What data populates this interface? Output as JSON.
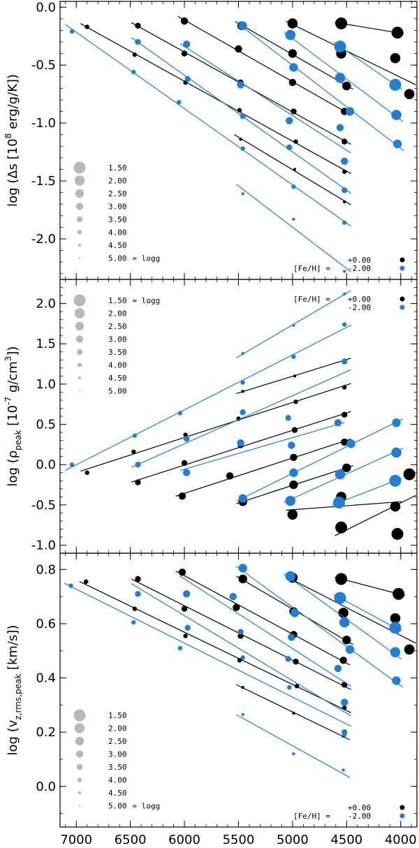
{
  "colors": {
    "fe_0": "#000000",
    "fe_m2": "#1f7fd6",
    "legend_gray": "#b8b8b8",
    "axis": "#000000"
  },
  "chart_data": [
    {
      "type": "scatter",
      "panel": "top",
      "ylabel_main": "log (Δs [10",
      "ylabel_sup": "8",
      "ylabel_tail": " erg/g/K])",
      "ylim": [
        -2.35,
        0.05
      ],
      "xlim": [
        7150,
        3850
      ],
      "yticks": [
        0.0,
        -0.5,
        -1.0,
        -1.5,
        -2.0
      ],
      "ytick_labels": [
        "0.0",
        "-0.5",
        "-1.0",
        "-1.5",
        "-2.0"
      ],
      "size_legend": {
        "position": "bottom-left",
        "values": [
          "1.50",
          "2.00",
          "2.50",
          "3.00",
          "3.50",
          "4.00",
          "4.50",
          "5.00"
        ],
        "suffix": "= logg"
      },
      "metal_legend": {
        "position": "bottom-right",
        "title": "[Fe/H] =",
        "entries": [
          "+0.00",
          "-2.00"
        ]
      },
      "series": [
        {
          "name": "[Fe/H]=+0.00",
          "color_key": "fe_0",
          "logg_points": [
            {
              "logg": 1.5,
              "x": [
                4550,
                4030
              ],
              "y": [
                -0.14,
                -0.22
              ]
            },
            {
              "logg": 2.0,
              "x": [
                5000,
                4550,
                4050,
                3920
              ],
              "y": [
                -0.14,
                -0.4,
                -0.44,
                -0.75
              ]
            },
            {
              "logg": 2.5,
              "x": [
                5470,
                5000,
                4500
              ],
              "y": [
                -0.16,
                -0.4,
                -0.68
              ]
            },
            {
              "logg": 3.0,
              "x": [
                6000,
                5500,
                5000,
                4520
              ],
              "y": [
                -0.12,
                -0.36,
                -0.65,
                -0.9
              ]
            },
            {
              "logg": 3.5,
              "x": [
                6430,
                6000,
                5480,
                4990,
                4520
              ],
              "y": [
                -0.16,
                -0.4,
                -0.65,
                -0.9,
                -1.16
              ]
            },
            {
              "logg": 4.0,
              "x": [
                6900,
                6460,
                5990,
                5490,
                4970,
                4520
              ],
              "y": [
                -0.17,
                -0.41,
                -0.65,
                -0.89,
                -1.16,
                -1.42
              ]
            },
            {
              "logg": 4.5,
              "x": [
                5480,
                4980,
                4520
              ],
              "y": [
                -1.14,
                -1.4,
                -1.68
              ]
            }
          ]
        },
        {
          "name": "[Fe/H]=-2.00",
          "color_key": "fe_m2",
          "logg_points": [
            {
              "logg": 1.5,
              "x": [
                4560,
                4050
              ],
              "y": [
                -0.34,
                -0.67
              ]
            },
            {
              "logg": 2.0,
              "x": [
                5020,
                4560,
                4040
              ],
              "y": [
                -0.24,
                -0.61,
                -0.93
              ]
            },
            {
              "logg": 2.5,
              "x": [
                5460,
                4990,
                4470,
                4030
              ],
              "y": [
                -0.16,
                -0.52,
                -0.9,
                -1.18
              ]
            },
            {
              "logg": 3.0,
              "x": [
                5980,
                5480,
                5030,
                4560,
                4520
              ],
              "y": [
                -0.32,
                -0.67,
                -0.98,
                -1.04,
                -1.33
              ]
            },
            {
              "logg": 3.5,
              "x": [
                6430,
                5970,
                5460,
                5030,
                4520
              ],
              "y": [
                -0.3,
                -0.62,
                -0.94,
                -1.21,
                -1.58
              ]
            },
            {
              "logg": 4.0,
              "x": [
                7040,
                6470,
                6050,
                5460,
                4990,
                4520
              ],
              "y": [
                -0.21,
                -0.56,
                -0.82,
                -1.22,
                -1.55,
                -1.86
              ]
            },
            {
              "logg": 4.5,
              "x": [
                5460,
                4990,
                4520
              ],
              "y": [
                -1.61,
                -1.83,
                -2.28
              ]
            }
          ]
        }
      ]
    },
    {
      "type": "scatter",
      "panel": "middle",
      "ylabel_main": "log (ρ",
      "ylabel_sub": "peak",
      "ylabel_tail": " [10",
      "ylabel_sup": "-7",
      "ylabel_tail2": " g/cm",
      "ylabel_sup2": "3",
      "ylabel_end": "])",
      "ylim": [
        -1.1,
        2.3
      ],
      "xlim": [
        7150,
        3850
      ],
      "yticks": [
        2.0,
        1.5,
        1.0,
        0.5,
        0.0,
        -0.5,
        -1.0
      ],
      "ytick_labels": [
        "2.0",
        "1.5",
        "1.0",
        "0.5",
        "0.0",
        "-0.5",
        "-1.0"
      ],
      "size_legend": {
        "position": "top-left",
        "values": [
          "1.50",
          "2.00",
          "2.50",
          "3.00",
          "3.50",
          "4.00",
          "4.50",
          "5.00"
        ],
        "suffix": "= logg"
      },
      "metal_legend": {
        "position": "top-right",
        "title": "[Fe/H] =",
        "entries": [
          "+0.00",
          "-2.00"
        ]
      },
      "series": [
        {
          "name": "[Fe/H]=+0.00",
          "color_key": "fe_0",
          "logg_points": [
            {
              "logg": 1.5,
              "x": [
                4550,
                4030,
                3920
              ],
              "y": [
                -0.78,
                -0.86,
                -0.12
              ]
            },
            {
              "logg": 2.0,
              "x": [
                5000,
                4550,
                4050
              ],
              "y": [
                -0.62,
                -0.4,
                -0.52
              ]
            },
            {
              "logg": 2.5,
              "x": [
                5460,
                4990,
                4500
              ],
              "y": [
                -0.46,
                -0.25,
                -0.04
              ]
            },
            {
              "logg": 3.0,
              "x": [
                6020,
                5580,
                4990,
                4520
              ],
              "y": [
                -0.39,
                -0.14,
                0.09,
                0.28
              ]
            },
            {
              "logg": 3.5,
              "x": [
                6430,
                6000,
                5480,
                4980,
                4520
              ],
              "y": [
                -0.22,
                0.02,
                0.24,
                0.43,
                0.62
              ]
            },
            {
              "logg": 4.0,
              "x": [
                6900,
                6470,
                5990,
                5500,
                4970,
                4520
              ],
              "y": [
                -0.1,
                0.16,
                0.37,
                0.57,
                0.78,
                0.96
              ]
            },
            {
              "logg": 4.5,
              "x": [
                5460,
                4980,
                4520
              ],
              "y": [
                0.91,
                1.1,
                1.3
              ]
            }
          ]
        },
        {
          "name": "[Fe/H]=-2.00",
          "color_key": "fe_m2",
          "logg_points": [
            {
              "logg": 1.5,
              "x": [
                4570,
                4050
              ],
              "y": [
                -0.47,
                -0.2
              ]
            },
            {
              "logg": 2.0,
              "x": [
                5020,
                4560,
                4040
              ],
              "y": [
                -0.45,
                -0.12,
                0.15
              ]
            },
            {
              "logg": 2.5,
              "x": [
                5460,
                4990,
                4460,
                4040
              ],
              "y": [
                -0.42,
                -0.1,
                0.26,
                0.52
              ]
            },
            {
              "logg": 3.0,
              "x": [
                5980,
                5480,
                5010,
                4580
              ],
              "y": [
                -0.1,
                0.27,
                0.24,
                0.52
              ]
            },
            {
              "logg": 3.5,
              "x": [
                6430,
                5980,
                5460,
                5040,
                4520
              ],
              "y": [
                0.0,
                0.32,
                0.65,
                0.58,
                1.28
              ]
            },
            {
              "logg": 4.0,
              "x": [
                7040,
                6460,
                6040,
                5460,
                4990,
                4520
              ],
              "y": [
                0.0,
                0.36,
                0.64,
                1.02,
                1.34,
                1.74
              ]
            },
            {
              "logg": 4.5,
              "x": [
                5460,
                4990,
                4520
              ],
              "y": [
                1.38,
                1.73,
                2.12
              ]
            }
          ]
        }
      ]
    },
    {
      "type": "scatter",
      "panel": "bottom",
      "ylabel_main": "log (v",
      "ylabel_sub": "z,rms,peak",
      "ylabel_tail": " [km/s])",
      "ylim": [
        -0.15,
        0.86
      ],
      "xlim": [
        7150,
        3850
      ],
      "xticks": [
        7000,
        6500,
        6000,
        5500,
        5000,
        4500,
        4000
      ],
      "xtick_labels": [
        "7000",
        "6500",
        "6000",
        "5500",
        "5000",
        "4500",
        "4000"
      ],
      "yticks": [
        0.8,
        0.6,
        0.4,
        0.2,
        0.0
      ],
      "ytick_labels": [
        "0.8",
        "0.6",
        "0.4",
        "0.2",
        "0.0"
      ],
      "size_legend": {
        "position": "bottom-left",
        "values": [
          "1.50",
          "2.00",
          "2.50",
          "3.00",
          "3.50",
          "4.00",
          "4.50",
          "5.00"
        ],
        "suffix": "= logg"
      },
      "metal_legend": {
        "position": "bottom-right",
        "title": "[Fe/H] =",
        "entries": [
          "+0.00",
          "-2.00"
        ]
      },
      "series": [
        {
          "name": "[Fe/H]=+0.00",
          "color_key": "fe_0",
          "logg_points": [
            {
              "logg": 1.5,
              "x": [
                4550,
                4020
              ],
              "y": [
                0.765,
                0.71
              ]
            },
            {
              "logg": 2.0,
              "x": [
                5000,
                4530,
                4050,
                3920
              ],
              "y": [
                0.77,
                0.64,
                0.62,
                0.505
              ]
            },
            {
              "logg": 2.5,
              "x": [
                5460,
                4990,
                4500
              ],
              "y": [
                0.765,
                0.645,
                0.54
              ]
            },
            {
              "logg": 3.0,
              "x": [
                6020,
                5520,
                4990,
                4530
              ],
              "y": [
                0.79,
                0.66,
                0.56,
                0.465
              ]
            },
            {
              "logg": 3.5,
              "x": [
                6430,
                6000,
                5480,
                4970,
                4520
              ],
              "y": [
                0.765,
                0.655,
                0.555,
                0.46,
                0.375
              ]
            },
            {
              "logg": 4.0,
              "x": [
                6910,
                6460,
                5990,
                5490,
                4960,
                4520
              ],
              "y": [
                0.755,
                0.655,
                0.555,
                0.465,
                0.37,
                0.29
              ]
            },
            {
              "logg": 4.5,
              "x": [
                5460,
                4990,
                4530
              ],
              "y": [
                0.365,
                0.27,
                0.185
              ]
            }
          ]
        },
        {
          "name": "[Fe/H]=-2.00",
          "color_key": "fe_m2",
          "logg_points": [
            {
              "logg": 1.5,
              "x": [
                4560,
                4050
              ],
              "y": [
                0.695,
                0.585
              ]
            },
            {
              "logg": 2.0,
              "x": [
                5020,
                4520,
                4050
              ],
              "y": [
                0.775,
                0.605,
                0.495
              ]
            },
            {
              "logg": 2.5,
              "x": [
                5460,
                4980,
                4470,
                4040
              ],
              "y": [
                0.805,
                0.64,
                0.505,
                0.39
              ]
            },
            {
              "logg": 3.0,
              "x": [
                5980,
                5550,
                5010,
                4580,
                4520
              ],
              "y": [
                0.71,
                0.7,
                0.55,
                0.435,
                0.31
              ]
            },
            {
              "logg": 3.5,
              "x": [
                6430,
                5970,
                5480,
                5040,
                4520
              ],
              "y": [
                0.71,
                0.585,
                0.57,
                0.47,
                0.2
              ]
            },
            {
              "logg": 4.0,
              "x": [
                7050,
                6470,
                6040,
                5460,
                5030,
                4520
              ],
              "y": [
                0.74,
                0.605,
                0.51,
                0.475,
                0.365,
                0.19
              ]
            },
            {
              "logg": 4.5,
              "x": [
                5460,
                4990,
                4530
              ],
              "y": [
                0.265,
                0.12,
                0.06
              ]
            }
          ]
        }
      ]
    }
  ]
}
